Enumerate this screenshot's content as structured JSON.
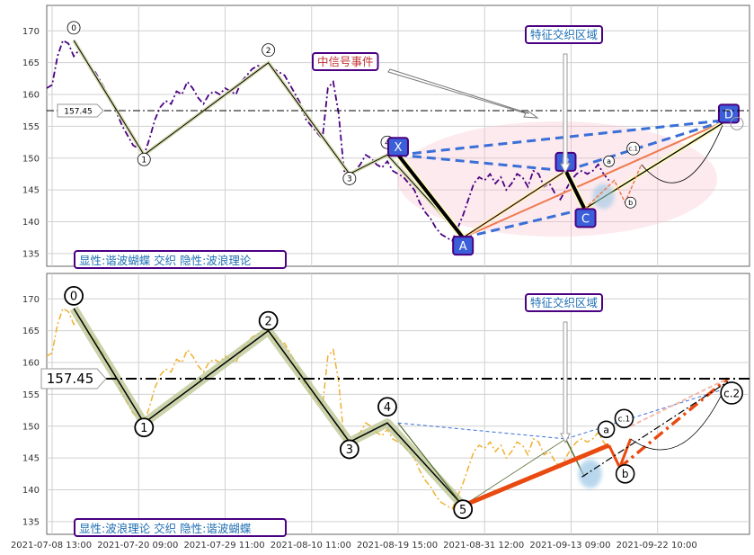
{
  "chart_data": [
    {
      "type": "line",
      "panel": "top",
      "ylim": [
        133,
        174
      ],
      "yticks": [
        135,
        140,
        145,
        150,
        155,
        160,
        165,
        170
      ],
      "grid": true,
      "reference_line": {
        "value": 157.45,
        "label": "157.45"
      },
      "bottom_note": "显性:谐波蝴蝶 交织 隐性:波浪理论",
      "annotations": {
        "event_label": "中信号事件",
        "zone_label": "特征交织区域"
      },
      "price_series": {
        "color": "#4b0082",
        "values": [
          161,
          161.5,
          166,
          168.5,
          168,
          166,
          167,
          166,
          164,
          163.5,
          162,
          160.5,
          159,
          157,
          155,
          153.5,
          152,
          151.5,
          150.5,
          153,
          156,
          158,
          159,
          158.5,
          160.5,
          160,
          162,
          161,
          159.5,
          158.5,
          160,
          160.5,
          160,
          161,
          160.5,
          160,
          162,
          163,
          164,
          164.5,
          164.5,
          165,
          164,
          163.5,
          163,
          161.5,
          160,
          158.5,
          156,
          155,
          154,
          153,
          161,
          162,
          157,
          148,
          147.5,
          148,
          149,
          150.5,
          150,
          149,
          148.5,
          149.5,
          148,
          147.5,
          147,
          146,
          145,
          143,
          141.5,
          140.5,
          139,
          138,
          137.5,
          137,
          139,
          141,
          143.5,
          146,
          147,
          146.5,
          147.5,
          146,
          147,
          145,
          146,
          147.5,
          147,
          145.5,
          148,
          147.5,
          145.5,
          146,
          144.5,
          143.5,
          145,
          146.5,
          147.5,
          148,
          147.5,
          148,
          149,
          147.5,
          146.5
        ]
      },
      "wave_points": [
        {
          "label": "0",
          "x": 5,
          "y": 168.5
        },
        {
          "label": "1",
          "x": 18,
          "y": 150.5
        },
        {
          "label": "2",
          "x": 41,
          "y": 165
        },
        {
          "label": "3",
          "x": 56,
          "y": 147.5
        },
        {
          "label": "4",
          "x": 63,
          "y": 150.5
        },
        {
          "label": "5",
          "x": 77,
          "y": 137.5
        }
      ],
      "pattern_points": [
        {
          "label": "X",
          "x": 65,
          "y": 150.5
        },
        {
          "label": "A",
          "x": 77,
          "y": 137.5
        },
        {
          "label": "B",
          "x": 96,
          "y": 148
        },
        {
          "label": "C",
          "x": 99.5,
          "y": 142
        },
        {
          "label": "D",
          "x": 126,
          "y": 156
        }
      ],
      "small_labels": [
        "a",
        "b",
        "c.1"
      ]
    },
    {
      "type": "line",
      "panel": "bottom",
      "ylim": [
        133,
        174
      ],
      "yticks": [
        135,
        140,
        145,
        150,
        155,
        160,
        165,
        170
      ],
      "grid": true,
      "reference_line": {
        "value": 157.45,
        "label": "157.45"
      },
      "bottom_note": "显性:波浪理论 交织 隐性:谐波蝴蝶",
      "annotations": {
        "zone_label": "特征交织区域"
      },
      "price_series": {
        "color": "#f0b030"
      },
      "wave_points": [
        {
          "label": "0",
          "x": 5,
          "y": 168.5
        },
        {
          "label": "1",
          "x": 18,
          "y": 150.5
        },
        {
          "label": "2",
          "x": 41,
          "y": 165
        },
        {
          "label": "3",
          "x": 56,
          "y": 147.5
        },
        {
          "label": "4",
          "x": 63,
          "y": 150.5
        },
        {
          "label": "5",
          "x": 77,
          "y": 137.5
        }
      ],
      "small_labels": [
        "a",
        "b",
        "c.1",
        "c.2"
      ]
    }
  ],
  "x_axis": {
    "tick_labels": [
      "2021-07-08 13:00",
      "2021-07-20 09:00",
      "2021-07-29 11:00",
      "2021-08-10 11:00",
      "2021-08-19 15:00",
      "2021-08-31 12:00",
      "2021-09-13 09:00",
      "2021-09-22 10:00"
    ]
  }
}
